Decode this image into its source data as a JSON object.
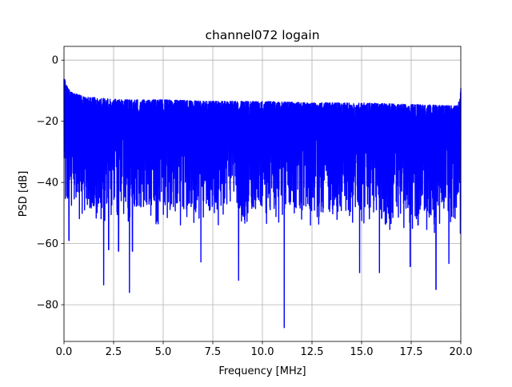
{
  "chart_data": {
    "type": "line",
    "title": "channel072 logain",
    "xlabel": "Frequency [MHz]",
    "ylabel": "PSD [dB]",
    "xlim": [
      0,
      20
    ],
    "ylim": [
      -92,
      4.5
    ],
    "xticks": [
      0,
      2.5,
      5,
      7.5,
      10,
      12.5,
      15,
      17.5,
      20
    ],
    "xtick_labels": [
      "0.0",
      "2.5",
      "5.0",
      "7.5",
      "10.0",
      "12.5",
      "15.0",
      "17.5",
      "20.0"
    ],
    "yticks": [
      0,
      -20,
      -40,
      -60,
      -80
    ],
    "ytick_labels": [
      "0",
      "−20",
      "−40",
      "−60",
      "−80"
    ],
    "grid": true,
    "series": [
      {
        "color": "#0000ff",
        "x_start": 0,
        "x_end": 20,
        "upper_envelope": [
          [
            0.0,
            -5
          ],
          [
            0.1,
            -8
          ],
          [
            0.2,
            -9
          ],
          [
            0.4,
            -10.5
          ],
          [
            1.0,
            -12
          ],
          [
            2.0,
            -12.5
          ],
          [
            3.0,
            -13
          ],
          [
            5.0,
            -13
          ],
          [
            7.5,
            -13.5
          ],
          [
            10.0,
            -13.5
          ],
          [
            12.5,
            -14
          ],
          [
            15.0,
            -14
          ],
          [
            17.5,
            -14.5
          ],
          [
            19.8,
            -15
          ],
          [
            19.95,
            -13
          ],
          [
            20.0,
            -9
          ]
        ],
        "lower_envelope": [
          [
            0.0,
            -45
          ],
          [
            1.0,
            -49
          ],
          [
            2.5,
            -49
          ],
          [
            5.0,
            -50
          ],
          [
            7.5,
            -50
          ],
          [
            10.0,
            -50
          ],
          [
            12.5,
            -50
          ],
          [
            15.0,
            -51
          ],
          [
            17.5,
            -52
          ],
          [
            20.0,
            -53
          ]
        ],
        "notable_minima": [
          [
            0.25,
            -59
          ],
          [
            2.0,
            -73.5
          ],
          [
            2.25,
            -62
          ],
          [
            2.75,
            -62.5
          ],
          [
            3.3,
            -76
          ],
          [
            3.45,
            -62.5
          ],
          [
            6.9,
            -66
          ],
          [
            8.8,
            -72
          ],
          [
            11.1,
            -87.5
          ],
          [
            14.9,
            -69.5
          ],
          [
            15.9,
            -69.5
          ],
          [
            17.45,
            -67.5
          ],
          [
            18.75,
            -75
          ],
          [
            19.4,
            -66.5
          ]
        ]
      }
    ]
  }
}
